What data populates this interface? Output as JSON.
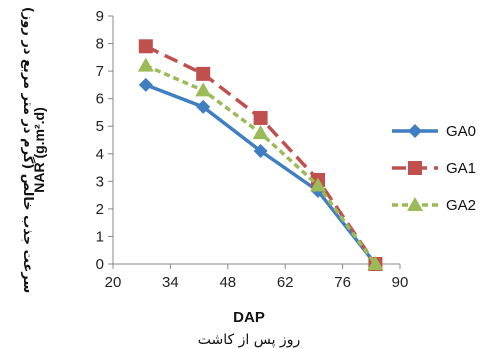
{
  "chart_data": {
    "type": "line",
    "xlabel": "DAP",
    "xlabel_fa": "روز پس از کاشت",
    "ylabel_fa": "سرعت جذب خالص (گرم در متر مربع در روز)",
    "ylabel_en": "NAR (g.m².d)",
    "xlim": [
      20,
      90
    ],
    "ylim": [
      0,
      9
    ],
    "xticks": [
      "20",
      "34",
      "48",
      "62",
      "76",
      "90"
    ],
    "yticks": [
      "0",
      "1",
      "2",
      "3",
      "4",
      "5",
      "6",
      "7",
      "8",
      "9"
    ],
    "grid": false,
    "legend_position": "right",
    "series": [
      {
        "name": "GA0",
        "color": "#3f7fc1",
        "marker": "diamond",
        "dash": "solid",
        "x": [
          28,
          42,
          56,
          70,
          84
        ],
        "y": [
          6.5,
          5.7,
          4.1,
          2.65,
          0
        ]
      },
      {
        "name": "GA1",
        "color": "#c0504d",
        "marker": "square",
        "dash": "long-dash",
        "x": [
          28,
          42,
          56,
          70,
          84
        ],
        "y": [
          7.9,
          6.9,
          5.3,
          3.05,
          0
        ]
      },
      {
        "name": "GA2",
        "color": "#9bbb59",
        "marker": "triangle",
        "dash": "short-dash",
        "x": [
          28,
          42,
          56,
          70,
          84
        ],
        "y": [
          7.2,
          6.3,
          4.75,
          2.85,
          0
        ]
      }
    ]
  }
}
